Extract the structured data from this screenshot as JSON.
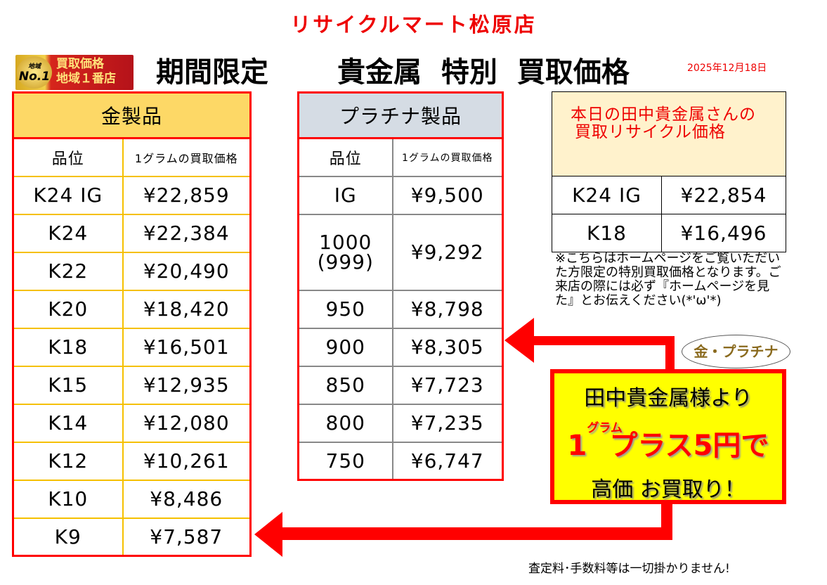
{
  "store_name": "リサイクルマート松原店",
  "badge": {
    "coin_small": "地域",
    "coin": "No.1",
    "line1": "買取価格",
    "line2": "地域１番店"
  },
  "title_left": "期間限定",
  "title_right": "貴金属 特別 買取価格",
  "date": "2025年12月18日",
  "gold": {
    "title": "金製品",
    "col1": "品位",
    "col2": "1グラムの買取価格",
    "rows": [
      {
        "grade": "K24 IG",
        "price": "¥22,859"
      },
      {
        "grade": "K24",
        "price": "¥22,384"
      },
      {
        "grade": "K22",
        "price": "¥20,490"
      },
      {
        "grade": "K20",
        "price": "¥18,420"
      },
      {
        "grade": "K18",
        "price": "¥16,501"
      },
      {
        "grade": "K15",
        "price": "¥12,935"
      },
      {
        "grade": "K14",
        "price": "¥12,080"
      },
      {
        "grade": "K12",
        "price": "¥10,261"
      },
      {
        "grade": "K10",
        "price": "¥8,486"
      },
      {
        "grade": "K9",
        "price": "¥7,587"
      }
    ]
  },
  "platinum": {
    "title": "プラチナ製品",
    "col1": "品位",
    "col2": "1グラムの買取価格",
    "rows": [
      {
        "grade": "IG",
        "price": "¥9,500"
      },
      {
        "grade": "1000",
        "grade2": "(999)",
        "price": "¥9,292"
      },
      {
        "grade": "950",
        "price": "¥8,798"
      },
      {
        "grade": "900",
        "price": "¥8,305"
      },
      {
        "grade": "850",
        "price": "¥7,723"
      },
      {
        "grade": "800",
        "price": "¥7,235"
      },
      {
        "grade": "750",
        "price": "¥6,747"
      }
    ]
  },
  "tanaka": {
    "title1": "本日の田中貴金属さんの",
    "title2": "買取リサイクル価格",
    "rows": [
      {
        "grade": "K24 IG",
        "price": "¥22,854"
      },
      {
        "grade": "K18",
        "price": "¥16,496"
      }
    ]
  },
  "note": "※こちらはホームページをご覧いただいた方限定の特別買取価格となります。ご来店の際には必ず『ホームページを見た』とお伝えください(*'ω'*)",
  "bubble": "金・プラチナ",
  "promo": {
    "line1": "田中貴金属様より",
    "one": "1",
    "gram": "グラム",
    "line2": "プラス5円で",
    "line3": "高価 お買取り！"
  },
  "footer": "査定料･手数料等は一切掛かりません!",
  "colors": {
    "accent": "#ff0000",
    "gold_header": "#fdd866",
    "platinum_header": "#d5dce4",
    "promo_bg": "#ffff00"
  }
}
